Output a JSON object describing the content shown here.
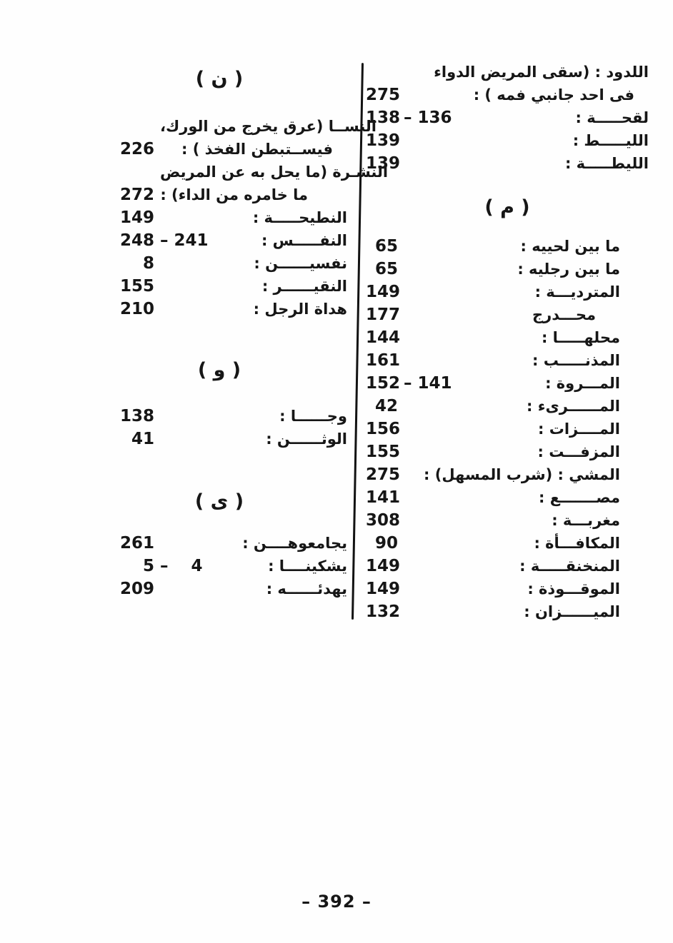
{
  "ui_colors": {
    "paper": "#fefefe",
    "ink": "#161616"
  },
  "footer": {
    "page_number": "– 392 –"
  },
  "columns": {
    "right": {
      "sections": [
        {
          "id": "lam-continuation",
          "header": "",
          "entries": [
            {
              "term": "اللدود : (سقى المريض الدواء",
              "page": "",
              "ext": "",
              "indent": 0
            },
            {
              "term": "فى احد جانبي فمه ) :",
              "page": "275",
              "ext": "",
              "indent": 1
            },
            {
              "term": "لقحـــــة :",
              "page": "138",
              "ext": "– 136",
              "indent": 0
            },
            {
              "term": "الليـــــط :",
              "page": "139",
              "ext": "",
              "indent": 0
            },
            {
              "term": "الليطـــــة :",
              "page": "139",
              "ext": "",
              "indent": 0
            }
          ]
        },
        {
          "id": "mim",
          "header": "( م )",
          "entries": [
            {
              "term": "ما بين لحييه :",
              "page": "65",
              "ext": "",
              "indent": 0
            },
            {
              "term": "ما بين رجليه :",
              "page": "65",
              "ext": "",
              "indent": 0
            },
            {
              "term": "المترديـــة :",
              "page": "149",
              "ext": "",
              "indent": 0
            },
            {
              "term": "محـــدرج",
              "page": "177",
              "ext": "",
              "indent": 2
            },
            {
              "term": "محلهـــــا :",
              "page": "144",
              "ext": "",
              "indent": 0
            },
            {
              "term": "المذنـــــب :",
              "page": "161",
              "ext": "",
              "indent": 0
            },
            {
              "term": "المـــروة :",
              "page": "152",
              "ext": "– 141",
              "indent": 0
            },
            {
              "term": "المــــــرىء :",
              "page": "42",
              "ext": "",
              "indent": 0
            },
            {
              "term": "المــــزات :",
              "page": "156",
              "ext": "",
              "indent": 0
            },
            {
              "term": "المزفـــت :",
              "page": "155",
              "ext": "",
              "indent": 0
            },
            {
              "term": "المشي : (شرب المسهل) :",
              "page": "275",
              "ext": "",
              "indent": 0
            },
            {
              "term": "مصـــــــع :",
              "page": "141",
              "ext": "",
              "indent": 0
            },
            {
              "term": "مغربـــة :",
              "page": "308",
              "ext": "",
              "indent": 0
            },
            {
              "term": "المكافـــأة :",
              "page": "90",
              "ext": "",
              "indent": 0
            },
            {
              "term": "المنخنقـــــة :",
              "page": "149",
              "ext": "",
              "indent": 0
            },
            {
              "term": "الموقـــوذة :",
              "page": "149",
              "ext": "",
              "indent": 0
            },
            {
              "term": "الميــــــزان :",
              "page": "132",
              "ext": "",
              "indent": 0
            }
          ]
        }
      ]
    },
    "left": {
      "sections": [
        {
          "id": "nun",
          "header": "( ن )",
          "entries": [
            {
              "term": "النســا (عرق يخرج من الورك،",
              "page": "",
              "ext": "",
              "indent": 0
            },
            {
              "term": "فيســتبطن الفخذ ) :",
              "page": "226",
              "ext": "",
              "indent": 1
            },
            {
              "term": "النشـرة (ما يحل به عن المريض",
              "page": "",
              "ext": "",
              "indent": 0
            },
            {
              "term": "ما خامره من الداء) :",
              "page": "272",
              "ext": "",
              "indent": 3
            },
            {
              "term": "النطيحـــــة :",
              "page": "149",
              "ext": "",
              "indent": 0
            },
            {
              "term": "النفـــــس :",
              "page": "248",
              "ext": "– 241",
              "indent": 0
            },
            {
              "term": "نفسيــــــن :",
              "page": "8",
              "ext": "",
              "indent": 0
            },
            {
              "term": "النقيــــــر :",
              "page": "155",
              "ext": "",
              "indent": 0
            },
            {
              "term": "هداة الرجل :",
              "page": "210",
              "ext": "",
              "indent": 0
            }
          ]
        },
        {
          "id": "waw",
          "header": "( و )",
          "entries": [
            {
              "term": "وجــــــا :",
              "page": "138",
              "ext": "",
              "indent": 0
            },
            {
              "term": "الوثــــــن :",
              "page": "41",
              "ext": "",
              "indent": 0
            }
          ]
        },
        {
          "id": "ya",
          "header": "( ى )",
          "entries": [
            {
              "term": "يجامعوهــــن :",
              "page": "261",
              "ext": "",
              "indent": 0
            },
            {
              "term": "يشكينــــا :",
              "page": "5",
              "ext": "–    4",
              "indent": 0
            },
            {
              "term": "يهدئــــــه :",
              "page": "209",
              "ext": "",
              "indent": 0
            }
          ]
        }
      ]
    }
  }
}
